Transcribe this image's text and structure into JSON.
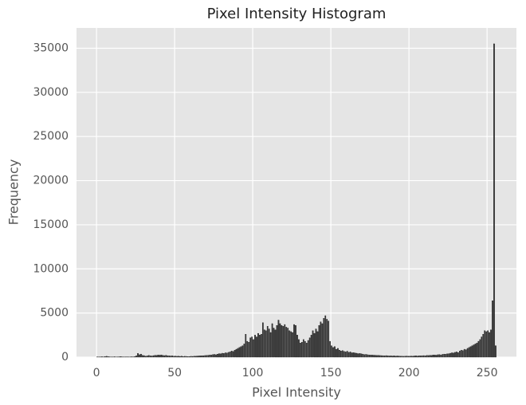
{
  "chart_data": {
    "type": "histogram",
    "title": "Pixel Intensity Histogram",
    "x_label": "Pixel Intensity",
    "y_label": "Frequency",
    "bins": [
      0,
      1,
      2,
      3,
      4,
      5,
      6,
      7,
      8,
      9,
      10,
      11,
      12,
      13,
      14,
      15,
      16,
      17,
      18,
      19,
      20,
      21,
      22,
      23,
      24,
      25,
      26,
      27,
      28,
      29,
      30,
      31,
      32,
      33,
      34,
      35,
      36,
      37,
      38,
      39,
      40,
      41,
      42,
      43,
      44,
      45,
      46,
      47,
      48,
      49,
      50,
      51,
      52,
      53,
      54,
      55,
      56,
      57,
      58,
      59,
      60,
      61,
      62,
      63,
      64,
      65,
      66,
      67,
      68,
      69,
      70,
      71,
      72,
      73,
      74,
      75,
      76,
      77,
      78,
      79,
      80,
      81,
      82,
      83,
      84,
      85,
      86,
      87,
      88,
      89,
      90,
      91,
      92,
      93,
      94,
      95,
      96,
      97,
      98,
      99,
      100,
      101,
      102,
      103,
      104,
      105,
      106,
      107,
      108,
      109,
      110,
      111,
      112,
      113,
      114,
      115,
      116,
      117,
      118,
      119,
      120,
      121,
      122,
      123,
      124,
      125,
      126,
      127,
      128,
      129,
      130,
      131,
      132,
      133,
      134,
      135,
      136,
      137,
      138,
      139,
      140,
      141,
      142,
      143,
      144,
      145,
      146,
      147,
      148,
      149,
      150,
      151,
      152,
      153,
      154,
      155,
      156,
      157,
      158,
      159,
      160,
      161,
      162,
      163,
      164,
      165,
      166,
      167,
      168,
      169,
      170,
      171,
      172,
      173,
      174,
      175,
      176,
      177,
      178,
      179,
      180,
      181,
      182,
      183,
      184,
      185,
      186,
      187,
      188,
      189,
      190,
      191,
      192,
      193,
      194,
      195,
      196,
      197,
      198,
      199,
      200,
      201,
      202,
      203,
      204,
      205,
      206,
      207,
      208,
      209,
      210,
      211,
      212,
      213,
      214,
      215,
      216,
      217,
      218,
      219,
      220,
      221,
      222,
      223,
      224,
      225,
      226,
      227,
      228,
      229,
      230,
      231,
      232,
      233,
      234,
      235,
      236,
      237,
      238,
      239,
      240,
      241,
      242,
      243,
      244,
      245,
      246,
      247,
      248,
      249,
      250,
      251,
      252,
      253,
      254,
      255,
      256
    ],
    "values": [
      40,
      20,
      30,
      50,
      30,
      80,
      100,
      60,
      40,
      30,
      20,
      50,
      30,
      20,
      40,
      60,
      30,
      20,
      30,
      40,
      20,
      30,
      50,
      40,
      80,
      150,
      420,
      280,
      350,
      200,
      180,
      120,
      150,
      200,
      160,
      140,
      180,
      220,
      200,
      250,
      230,
      260,
      200,
      180,
      220,
      170,
      150,
      140,
      160,
      120,
      130,
      100,
      110,
      90,
      120,
      80,
      100,
      90,
      70,
      80,
      100,
      90,
      120,
      110,
      130,
      140,
      150,
      160,
      170,
      190,
      200,
      220,
      240,
      260,
      300,
      320,
      280,
      350,
      400,
      380,
      450,
      420,
      500,
      480,
      550,
      600,
      700,
      650,
      800,
      900,
      1000,
      1100,
      1200,
      1300,
      1500,
      2600,
      1800,
      1700,
      2200,
      2300,
      2000,
      2500,
      2300,
      2700,
      2500,
      2600,
      3900,
      3100,
      3000,
      3500,
      3200,
      2800,
      3800,
      3300,
      3100,
      3600,
      4200,
      3800,
      3600,
      3500,
      3700,
      3400,
      3300,
      3000,
      2900,
      2800,
      3700,
      3600,
      2500,
      2000,
      1600,
      1700,
      2000,
      1800,
      1600,
      1900,
      2200,
      2500,
      3000,
      2700,
      3200,
      2900,
      3600,
      4000,
      3800,
      4400,
      4700,
      4300,
      4100,
      1800,
      1300,
      1100,
      1200,
      900,
      1000,
      800,
      700,
      750,
      650,
      600,
      680,
      550,
      600,
      500,
      520,
      480,
      450,
      400,
      420,
      380,
      350,
      300,
      320,
      280,
      260,
      250,
      240,
      230,
      220,
      200,
      210,
      190,
      180,
      170,
      160,
      180,
      150,
      140,
      160,
      130,
      150,
      120,
      140,
      130,
      110,
      120,
      100,
      110,
      130,
      120,
      120,
      130,
      110,
      140,
      150,
      130,
      160,
      150,
      170,
      180,
      160,
      200,
      190,
      220,
      210,
      250,
      240,
      230,
      280,
      300,
      260,
      320,
      350,
      330,
      380,
      400,
      450,
      500,
      480,
      550,
      600,
      520,
      700,
      800,
      750,
      900,
      850,
      1000,
      1100,
      1200,
      1300,
      1400,
      1500,
      1600,
      1800,
      2000,
      2300,
      2600,
      3000,
      2900,
      3000,
      2800,
      3100,
      6400,
      35500,
      1300
    ],
    "color": "#3a3a3a",
    "edgecolor": "#000000",
    "xlim": [
      -12.8,
      268.8
    ],
    "xticks": [
      0,
      50,
      100,
      150,
      200,
      250
    ],
    "ylim": [
      0,
      37300
    ],
    "yticks": [
      0,
      5000,
      10000,
      15000,
      20000,
      25000,
      30000,
      35000
    ],
    "grid": true
  }
}
